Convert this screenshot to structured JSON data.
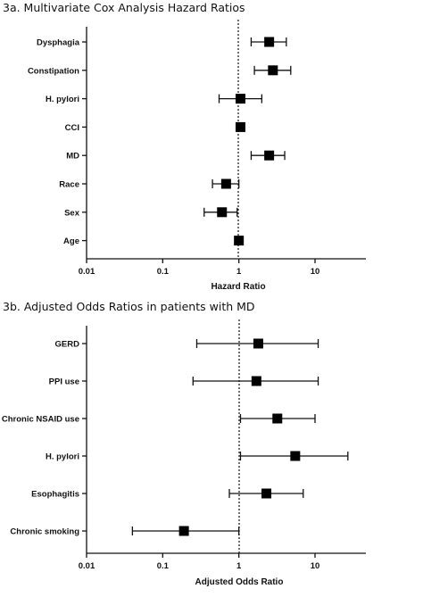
{
  "chart_data": [
    {
      "type": "forest",
      "title": "3a. Multivariate Cox Analysis Hazard Ratios",
      "xlabel": "Hazard Ratio",
      "xscale": "log",
      "xlim": [
        0.01,
        50
      ],
      "xticks": [
        0.01,
        0.1,
        1,
        10
      ],
      "xtick_labels": [
        "0.01",
        "0.1",
        "1",
        "10"
      ],
      "reference_line": 1,
      "grid": false,
      "categories": [
        "Dysphagia",
        "Constipation",
        "H. pylori",
        "CCI",
        "MD",
        "Race",
        "Sex",
        "Age"
      ],
      "estimates": [
        2.5,
        2.8,
        1.05,
        1.05,
        2.5,
        0.68,
        0.6,
        1.0
      ],
      "ci_low": [
        1.45,
        1.6,
        0.55,
        null,
        1.45,
        0.45,
        0.35,
        null
      ],
      "ci_high": [
        4.2,
        4.8,
        2.0,
        null,
        4.0,
        1.0,
        0.95,
        null
      ]
    },
    {
      "type": "forest",
      "title": "3b. Adjusted Odds Ratios in patients with MD",
      "xlabel": "Adjusted Odds Ratio",
      "xscale": "log",
      "xlim": [
        0.01,
        50
      ],
      "xticks": [
        0.01,
        0.1,
        1,
        10
      ],
      "xtick_labels": [
        "0.01",
        "0.1",
        "1",
        "10"
      ],
      "reference_line": 1,
      "grid": false,
      "categories": [
        "GERD",
        "PPI use",
        "Chronic NSAID use",
        "H. pylori",
        "Esophagitis",
        "Chronic smoking"
      ],
      "estimates": [
        1.8,
        1.7,
        3.2,
        5.5,
        2.3,
        0.19
      ],
      "ci_low": [
        0.28,
        0.25,
        1.05,
        1.05,
        0.75,
        0.04
      ],
      "ci_high": [
        11,
        11,
        10,
        27,
        7,
        1.0
      ]
    }
  ]
}
